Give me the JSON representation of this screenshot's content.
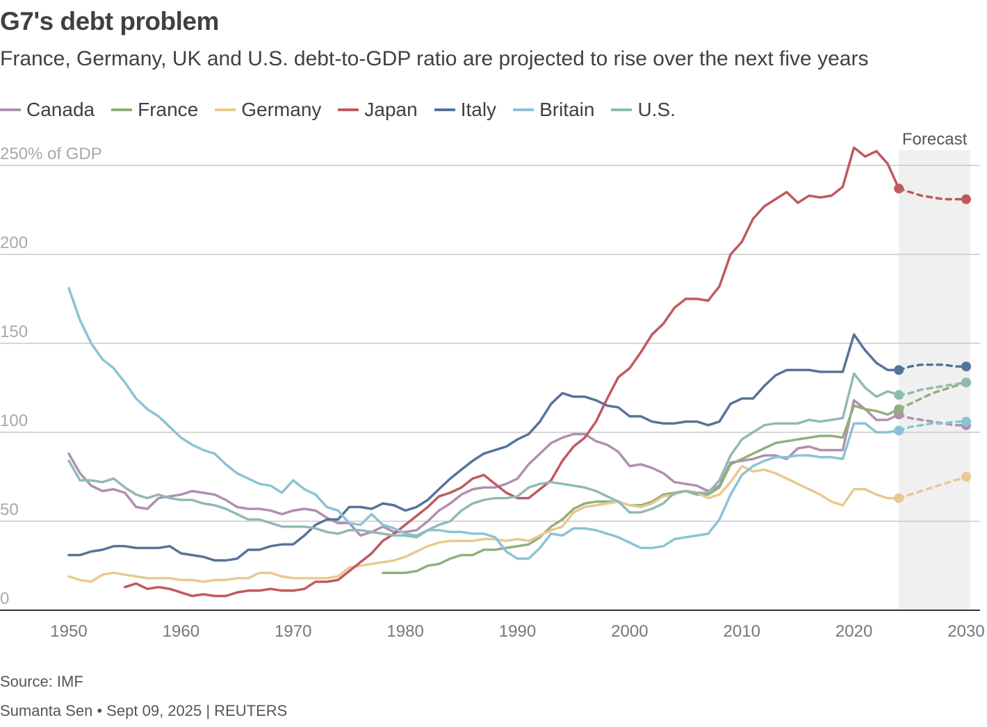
{
  "header": {
    "title": "G7's debt problem",
    "subtitle": "France, Germany, UK and U.S. debt-to-GDP ratio are projected to rise over the next five years"
  },
  "footer": {
    "source": "Source: IMF",
    "byline": "Sumanta Sen • Sept 09, 2025 | REUTERS"
  },
  "chart_data": {
    "type": "line",
    "ylabel": "",
    "y_top_label": "250% of GDP",
    "ylim": [
      0,
      250
    ],
    "yticks": [
      0,
      50,
      100,
      150,
      200,
      250
    ],
    "ytick_labels": [
      "0",
      "50",
      "100",
      "150",
      "200",
      "250% of GDP"
    ],
    "xlim": [
      1950,
      2030
    ],
    "xticks": [
      1950,
      1960,
      1970,
      1980,
      1990,
      2000,
      2010,
      2020,
      2030
    ],
    "forecast": {
      "label": "Forecast",
      "start": 2024,
      "end": 2030
    },
    "grid": true,
    "legend_placement": "top-left",
    "series": [
      {
        "name": "Canada",
        "color": "#b08fb0",
        "x": [
          1950,
          1951,
          1952,
          1953,
          1954,
          1955,
          1956,
          1957,
          1958,
          1959,
          1960,
          1961,
          1962,
          1963,
          1964,
          1965,
          1966,
          1967,
          1968,
          1969,
          1970,
          1971,
          1972,
          1973,
          1974,
          1975,
          1976,
          1977,
          1978,
          1979,
          1980,
          1981,
          1982,
          1983,
          1984,
          1985,
          1986,
          1987,
          1988,
          1989,
          1990,
          1991,
          1992,
          1993,
          1994,
          1995,
          1996,
          1997,
          1998,
          1999,
          2000,
          2001,
          2002,
          2003,
          2004,
          2005,
          2006,
          2007,
          2008,
          2009,
          2010,
          2011,
          2012,
          2013,
          2014,
          2015,
          2016,
          2017,
          2018,
          2019,
          2020,
          2021,
          2022,
          2023,
          2024
        ],
        "y": [
          88,
          77,
          70,
          67,
          68,
          66,
          58,
          57,
          63,
          64,
          65,
          67,
          66,
          65,
          62,
          58,
          57,
          57,
          56,
          54,
          56,
          57,
          56,
          52,
          49,
          49,
          42,
          44,
          47,
          44,
          44,
          45,
          50,
          56,
          60,
          65,
          68,
          69,
          69,
          71,
          74,
          82,
          88,
          94,
          97,
          99,
          99,
          95,
          93,
          89,
          81,
          82,
          80,
          77,
          72,
          71,
          70,
          67,
          70,
          83,
          84,
          85,
          87,
          87,
          85,
          91,
          92,
          90,
          90,
          90,
          118,
          113,
          107,
          107,
          110
        ],
        "forecast_x": [
          2024,
          2025,
          2026,
          2027,
          2028,
          2029,
          2030
        ],
        "forecast_y": [
          110,
          108,
          107,
          106,
          105,
          104,
          104
        ]
      },
      {
        "name": "France",
        "color": "#91b07a",
        "x": [
          1978,
          1979,
          1980,
          1981,
          1982,
          1983,
          1984,
          1985,
          1986,
          1987,
          1988,
          1989,
          1990,
          1991,
          1992,
          1993,
          1994,
          1995,
          1996,
          1997,
          1998,
          1999,
          2000,
          2001,
          2002,
          2003,
          2004,
          2005,
          2006,
          2007,
          2008,
          2009,
          2010,
          2011,
          2012,
          2013,
          2014,
          2015,
          2016,
          2017,
          2018,
          2019,
          2020,
          2021,
          2022,
          2023,
          2024
        ],
        "y": [
          21,
          21,
          21,
          22,
          25,
          26,
          29,
          31,
          31,
          34,
          34,
          35,
          36,
          37,
          41,
          47,
          51,
          57,
          60,
          61,
          61,
          61,
          59,
          59,
          61,
          65,
          66,
          67,
          65,
          65,
          69,
          82,
          85,
          88,
          91,
          94,
          95,
          96,
          97,
          98,
          98,
          97,
          115,
          113,
          112,
          110,
          113
        ],
        "forecast_x": [
          2024,
          2025,
          2026,
          2027,
          2028,
          2029,
          2030
        ],
        "forecast_y": [
          113,
          116,
          119,
          122,
          124,
          126,
          128
        ]
      },
      {
        "name": "Germany",
        "color": "#e9c98e",
        "x": [
          1950,
          1951,
          1952,
          1953,
          1954,
          1955,
          1956,
          1957,
          1958,
          1959,
          1960,
          1961,
          1962,
          1963,
          1964,
          1965,
          1966,
          1967,
          1968,
          1969,
          1970,
          1971,
          1972,
          1973,
          1974,
          1975,
          1976,
          1977,
          1978,
          1979,
          1980,
          1981,
          1982,
          1983,
          1984,
          1985,
          1986,
          1987,
          1988,
          1989,
          1990,
          1991,
          1992,
          1993,
          1994,
          1995,
          1996,
          1997,
          1998,
          1999,
          2000,
          2001,
          2002,
          2003,
          2004,
          2005,
          2006,
          2007,
          2008,
          2009,
          2010,
          2011,
          2012,
          2013,
          2014,
          2015,
          2016,
          2017,
          2018,
          2019,
          2020,
          2021,
          2022,
          2023,
          2024
        ],
        "y": [
          19,
          17,
          16,
          20,
          21,
          20,
          19,
          18,
          18,
          18,
          17,
          17,
          16,
          17,
          17,
          18,
          18,
          21,
          21,
          19,
          18,
          18,
          18,
          18,
          19,
          24,
          25,
          26,
          27,
          28,
          30,
          33,
          36,
          38,
          39,
          39,
          39,
          40,
          40,
          39,
          40,
          39,
          42,
          45,
          47,
          55,
          58,
          59,
          60,
          61,
          59,
          58,
          60,
          64,
          65,
          67,
          66,
          63,
          65,
          72,
          81,
          78,
          79,
          77,
          74,
          71,
          68,
          65,
          61,
          59,
          68,
          68,
          65,
          63,
          63
        ],
        "forecast_x": [
          2024,
          2025,
          2026,
          2027,
          2028,
          2029,
          2030
        ],
        "forecast_y": [
          63,
          65,
          67,
          69,
          71,
          73,
          75
        ]
      },
      {
        "name": "Japan",
        "color": "#c0595f",
        "x": [
          1955,
          1956,
          1957,
          1958,
          1959,
          1960,
          1961,
          1962,
          1963,
          1964,
          1965,
          1966,
          1967,
          1968,
          1969,
          1970,
          1971,
          1972,
          1973,
          1974,
          1975,
          1976,
          1977,
          1978,
          1979,
          1980,
          1981,
          1982,
          1983,
          1984,
          1985,
          1986,
          1987,
          1988,
          1989,
          1990,
          1991,
          1992,
          1993,
          1994,
          1995,
          1996,
          1997,
          1998,
          1999,
          2000,
          2001,
          2002,
          2003,
          2004,
          2005,
          2006,
          2007,
          2008,
          2009,
          2010,
          2011,
          2012,
          2013,
          2014,
          2015,
          2016,
          2017,
          2018,
          2019,
          2020,
          2021,
          2022,
          2023,
          2024
        ],
        "y": [
          13,
          15,
          12,
          13,
          12,
          10,
          8,
          9,
          8,
          8,
          10,
          11,
          11,
          12,
          11,
          11,
          12,
          16,
          16,
          17,
          22,
          27,
          32,
          39,
          43,
          48,
          53,
          58,
          64,
          66,
          69,
          74,
          76,
          71,
          66,
          63,
          63,
          68,
          73,
          84,
          92,
          97,
          106,
          119,
          131,
          136,
          145,
          155,
          161,
          170,
          175,
          175,
          174,
          182,
          200,
          207,
          220,
          227,
          231,
          235,
          229,
          233,
          232,
          233,
          238,
          260,
          255,
          258,
          251,
          237
        ],
        "forecast_x": [
          2024,
          2025,
          2026,
          2027,
          2028,
          2029,
          2030
        ],
        "forecast_y": [
          237,
          235,
          233,
          232,
          231,
          231,
          231
        ]
      },
      {
        "name": "Italy",
        "color": "#567399",
        "x": [
          1950,
          1951,
          1952,
          1953,
          1954,
          1955,
          1956,
          1957,
          1958,
          1959,
          1960,
          1961,
          1962,
          1963,
          1964,
          1965,
          1966,
          1967,
          1968,
          1969,
          1970,
          1971,
          1972,
          1973,
          1974,
          1975,
          1976,
          1977,
          1978,
          1979,
          1980,
          1981,
          1982,
          1983,
          1984,
          1985,
          1986,
          1987,
          1988,
          1989,
          1990,
          1991,
          1992,
          1993,
          1994,
          1995,
          1996,
          1997,
          1998,
          1999,
          2000,
          2001,
          2002,
          2003,
          2004,
          2005,
          2006,
          2007,
          2008,
          2009,
          2010,
          2011,
          2012,
          2013,
          2014,
          2015,
          2016,
          2017,
          2018,
          2019,
          2020,
          2021,
          2022,
          2023,
          2024
        ],
        "y": [
          31,
          31,
          33,
          34,
          36,
          36,
          35,
          35,
          35,
          36,
          32,
          31,
          30,
          28,
          28,
          29,
          34,
          34,
          36,
          37,
          37,
          42,
          48,
          51,
          51,
          58,
          58,
          57,
          60,
          59,
          56,
          58,
          62,
          68,
          74,
          79,
          84,
          88,
          90,
          92,
          96,
          99,
          106,
          116,
          122,
          120,
          120,
          118,
          115,
          114,
          109,
          109,
          106,
          105,
          105,
          106,
          106,
          104,
          106,
          116,
          119,
          119,
          126,
          132,
          135,
          135,
          135,
          134,
          134,
          134,
          155,
          146,
          139,
          135,
          135
        ],
        "forecast_x": [
          2024,
          2025,
          2026,
          2027,
          2028,
          2029,
          2030
        ],
        "forecast_y": [
          135,
          137,
          138,
          138,
          138,
          137,
          137
        ]
      },
      {
        "name": "Britain",
        "color": "#8cc3d4",
        "x": [
          1950,
          1951,
          1952,
          1953,
          1954,
          1955,
          1956,
          1957,
          1958,
          1959,
          1960,
          1961,
          1962,
          1963,
          1964,
          1965,
          1966,
          1967,
          1968,
          1969,
          1970,
          1971,
          1972,
          1973,
          1974,
          1975,
          1976,
          1977,
          1978,
          1979,
          1980,
          1981,
          1982,
          1983,
          1984,
          1985,
          1986,
          1987,
          1988,
          1989,
          1990,
          1991,
          1992,
          1993,
          1994,
          1995,
          1996,
          1997,
          1998,
          1999,
          2000,
          2001,
          2002,
          2003,
          2004,
          2005,
          2006,
          2007,
          2008,
          2009,
          2010,
          2011,
          2012,
          2013,
          2014,
          2015,
          2016,
          2017,
          2018,
          2019,
          2020,
          2021,
          2022,
          2023,
          2024
        ],
        "y": [
          181,
          163,
          150,
          141,
          136,
          128,
          119,
          113,
          109,
          103,
          97,
          93,
          90,
          88,
          82,
          77,
          74,
          71,
          70,
          66,
          73,
          68,
          65,
          58,
          56,
          49,
          48,
          54,
          48,
          46,
          43,
          42,
          45,
          45,
          44,
          44,
          43,
          43,
          41,
          33,
          29,
          29,
          35,
          43,
          42,
          46,
          46,
          45,
          43,
          41,
          38,
          35,
          35,
          36,
          40,
          41,
          42,
          43,
          51,
          65,
          76,
          81,
          84,
          86,
          86,
          87,
          87,
          86,
          86,
          85,
          105,
          105,
          100,
          100,
          101
        ],
        "forecast_x": [
          2024,
          2025,
          2026,
          2027,
          2028,
          2029,
          2030
        ],
        "forecast_y": [
          101,
          103,
          104,
          105,
          105,
          106,
          106
        ]
      },
      {
        "name": "U.S.",
        "color": "#90bab4",
        "x": [
          1950,
          1951,
          1952,
          1953,
          1954,
          1955,
          1956,
          1957,
          1958,
          1959,
          1960,
          1961,
          1962,
          1963,
          1964,
          1965,
          1966,
          1967,
          1968,
          1969,
          1970,
          1971,
          1972,
          1973,
          1974,
          1975,
          1976,
          1977,
          1978,
          1979,
          1980,
          1981,
          1982,
          1983,
          1984,
          1985,
          1986,
          1987,
          1988,
          1989,
          1990,
          1991,
          1992,
          1993,
          1994,
          1995,
          1996,
          1997,
          1998,
          1999,
          2000,
          2001,
          2002,
          2003,
          2004,
          2005,
          2006,
          2007,
          2008,
          2009,
          2010,
          2011,
          2012,
          2013,
          2014,
          2015,
          2016,
          2017,
          2018,
          2019,
          2020,
          2021,
          2022,
          2023,
          2024
        ],
        "y": [
          84,
          73,
          73,
          72,
          74,
          69,
          65,
          63,
          65,
          63,
          62,
          62,
          60,
          59,
          57,
          54,
          51,
          51,
          49,
          47,
          47,
          47,
          46,
          44,
          43,
          45,
          45,
          44,
          43,
          42,
          42,
          41,
          45,
          48,
          50,
          56,
          60,
          62,
          63,
          63,
          64,
          69,
          71,
          72,
          71,
          70,
          69,
          67,
          64,
          61,
          55,
          55,
          57,
          60,
          66,
          67,
          66,
          66,
          73,
          87,
          96,
          100,
          104,
          105,
          105,
          105,
          107,
          106,
          107,
          108,
          133,
          125,
          120,
          123,
          121
        ],
        "forecast_x": [
          2024,
          2025,
          2026,
          2027,
          2028,
          2029,
          2030
        ],
        "forecast_y": [
          121,
          122,
          124,
          125,
          126,
          127,
          128
        ]
      }
    ]
  }
}
